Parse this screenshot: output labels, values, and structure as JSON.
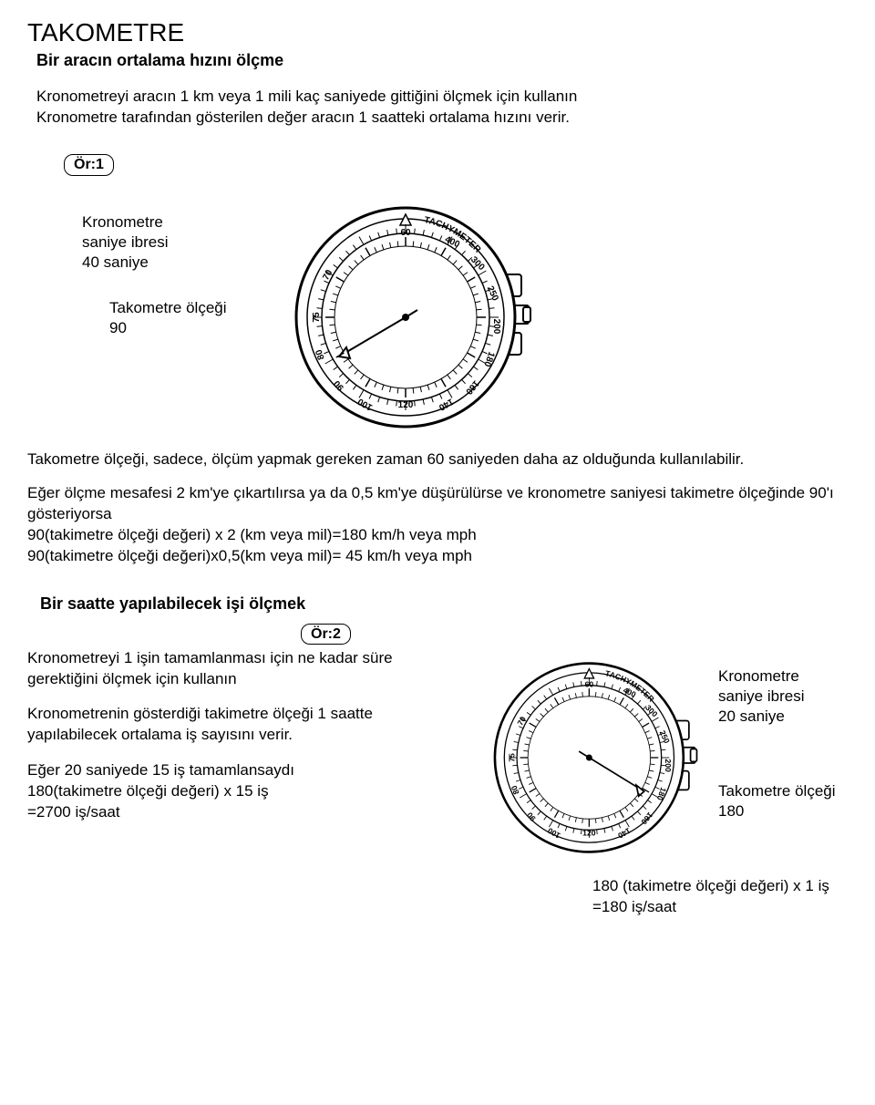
{
  "title": "TAKOMETRE",
  "subtitle": "Bir aracın ortalama hızını ölçme",
  "intro1": "Kronometreyi aracın 1 km veya 1 mili kaç saniyede gittiğini ölçmek için kullanın",
  "intro2": "Kronometre tarafından gösterilen değer aracın 1 saatteki ortalama hızını verir.",
  "ex1_label": "Ör:1",
  "ex1_hand_label1": "Kronometre",
  "ex1_hand_label2": "saniye ibresi",
  "ex1_hand_label3": "40 saniye",
  "ex1_scale_label1": "Takometre ölçeği",
  "ex1_scale_label2": "90",
  "body1": "Takometre ölçeği, sadece, ölçüm yapmak gereken zaman 60 saniyeden daha az olduğunda kullanılabilir.",
  "body2a": "Eğer ölçme mesafesi 2 km'ye çıkartılırsa ya da 0,5 km'ye düşürülürse ve kronometre saniyesi takimetre ölçeğinde 90'ı gösteriyorsa",
  "body2b": "90(takimetre ölçeği değeri) x 2 (km veya mil)=180 km/h veya mph",
  "body2c": "90(takimetre ölçeği değeri)x0,5(km veya mil)=  45 km/h veya mph",
  "subheading2": "Bir saatte yapılabilecek işi ölçmek",
  "ex2_label": "Ör:2",
  "ex2_left_p1": "Kronometreyi 1 işin tamamlanması için ne kadar süre gerektiğini ölçmek için kullanın",
  "ex2_left_p2": "Kronometrenin gösterdiği takimetre ölçeği 1 saatte yapılabilecek ortalama iş sayısını verir.",
  "ex2_left_p3a": "Eğer 20 saniyede 15 iş tamamlansaydı",
  "ex2_left_p3b": "180(takimetre ölçeği değeri) x 15 iş",
  "ex2_left_p3c": "=2700 iş/saat",
  "ex2_right_1a": "Kronometre",
  "ex2_right_1b": "saniye ibresi",
  "ex2_right_1c": "20 saniye",
  "ex2_right_2a": "Takometre ölçeği",
  "ex2_right_2b": "180",
  "ex2_calc1": "180 (takimetre ölçeği değeri) x 1 iş",
  "ex2_calc2": "=180 iş/saat",
  "tachy_text": "TACHYMETER",
  "tachy_labels": [
    "60",
    "400",
    "300",
    "250",
    "200",
    "180",
    "160",
    "140",
    "120",
    "100",
    "90",
    "80",
    "75",
    "70"
  ],
  "watch": {
    "outer_stroke": "#000000",
    "stroke_width": 2,
    "fill": "#ffffff",
    "font": "Arial"
  }
}
